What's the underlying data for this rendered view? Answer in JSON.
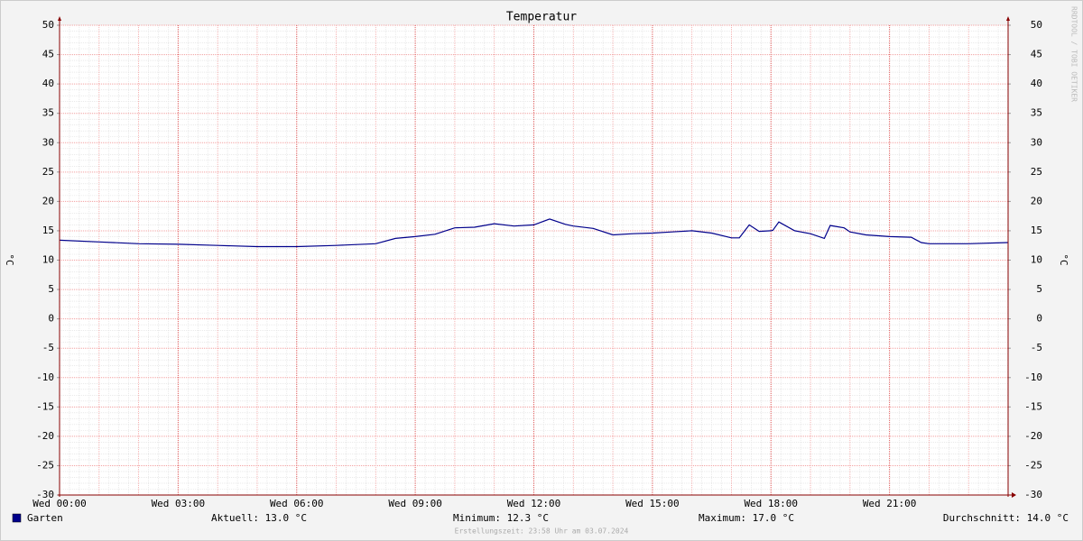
{
  "chart_data": {
    "type": "line",
    "title": "Temperatur",
    "ylabel": "°C",
    "watermark": "RRDTOOL / TOBI OETIKER",
    "footer": "Erstellungszeit: 23:58 Uhr am 03.07.2024",
    "x": [
      0,
      1,
      2,
      3,
      4,
      5,
      6,
      7,
      8,
      8.5,
      9,
      9.5,
      10,
      10.5,
      11,
      11.5,
      12,
      12.4,
      12.8,
      13,
      13.5,
      14,
      14.5,
      15,
      15.5,
      16,
      16.5,
      17,
      17.2,
      17.45,
      17.7,
      18,
      18.05,
      18.2,
      18.6,
      19,
      19.35,
      19.5,
      19.85,
      20,
      20.4,
      21,
      21.55,
      21.8,
      22,
      23,
      24
    ],
    "series": [
      {
        "name": "Garten",
        "color": "#00008b",
        "values": [
          13.4,
          13.1,
          12.8,
          12.7,
          12.5,
          12.3,
          12.3,
          12.5,
          12.8,
          13.7,
          14.0,
          14.4,
          15.5,
          15.6,
          16.2,
          15.8,
          16.0,
          17.0,
          16.1,
          15.8,
          15.4,
          14.3,
          14.5,
          14.6,
          14.8,
          15.0,
          14.6,
          13.8,
          13.8,
          16.0,
          14.9,
          15.0,
          15.1,
          16.5,
          15.0,
          14.5,
          13.7,
          15.9,
          15.5,
          14.8,
          14.3,
          14.0,
          13.9,
          13.0,
          12.8,
          12.8,
          13.0
        ]
      }
    ],
    "stats": [
      "Aktuell: 13.0 °C",
      "Minimum: 12.3 °C",
      "Maximum: 17.0 °C",
      "Durchschnitt: 14.0 °C"
    ],
    "xlim": [
      0,
      24
    ],
    "xticks": [
      {
        "value": 0,
        "label": "Wed 00:00"
      },
      {
        "value": 3,
        "label": "Wed 03:00"
      },
      {
        "value": 6,
        "label": "Wed 06:00"
      },
      {
        "value": 9,
        "label": "Wed 09:00"
      },
      {
        "value": 12,
        "label": "Wed 12:00"
      },
      {
        "value": 15,
        "label": "Wed 15:00"
      },
      {
        "value": 18,
        "label": "Wed 18:00"
      },
      {
        "value": 21,
        "label": "Wed 21:00"
      }
    ],
    "ylim": [
      -30,
      50
    ],
    "yticks": [
      -30,
      -25,
      -20,
      -15,
      -10,
      -5,
      0,
      5,
      10,
      15,
      20,
      25,
      30,
      35,
      40,
      45,
      50
    ],
    "grid": true
  }
}
